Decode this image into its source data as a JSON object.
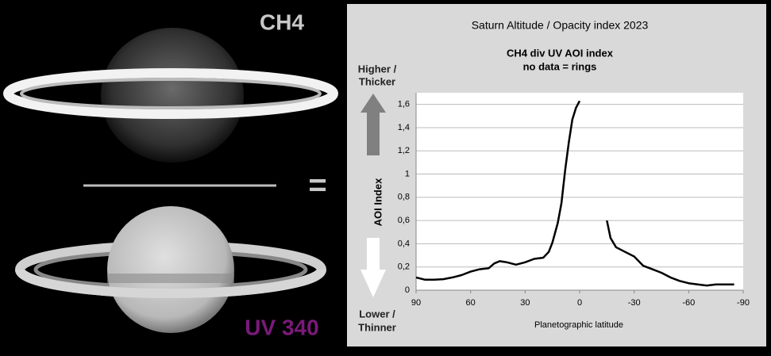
{
  "chart_data": {
    "type": "line",
    "title": "Saturn Altitude / Opacity index 2023",
    "subtitle": "CH4 div UV AOI index",
    "annotation": "no data = rings",
    "xlabel": "Planetographic latitude",
    "ylabel": "AOI Index",
    "x": [
      90,
      85,
      80,
      75,
      70,
      65,
      60,
      55,
      50,
      47,
      44,
      40,
      35,
      30,
      25,
      20,
      17,
      15,
      12,
      10,
      8,
      6,
      4,
      2,
      0,
      -5,
      -15,
      -17,
      -20,
      -25,
      -30,
      -35,
      -40,
      -45,
      -50,
      -55,
      -60,
      -65,
      -70,
      -75,
      -80,
      -85
    ],
    "series": [
      {
        "name": "AOI",
        "color": "#000000",
        "values": [
          0.11,
          0.09,
          0.09,
          0.095,
          0.11,
          0.13,
          0.16,
          0.18,
          0.19,
          0.23,
          0.25,
          0.24,
          0.22,
          0.24,
          0.27,
          0.28,
          0.33,
          0.41,
          0.58,
          0.75,
          1.03,
          1.27,
          1.47,
          1.57,
          1.63,
          null,
          0.6,
          0.45,
          0.37,
          0.33,
          0.29,
          0.21,
          0.18,
          0.15,
          0.11,
          0.08,
          0.06,
          0.05,
          0.04,
          0.05,
          0.05,
          0.05
        ]
      }
    ],
    "xlim": [
      90,
      -90
    ],
    "xticks": [
      90,
      60,
      30,
      0,
      -30,
      -60,
      -90
    ],
    "ylim": [
      0,
      1.7
    ],
    "yticks": [
      0,
      {
        "value": 0.2,
        "label": "0,2"
      },
      {
        "value": 0.4,
        "label": "0,4"
      },
      {
        "value": 0.6,
        "label": "0,6"
      },
      {
        "value": 0.8,
        "label": "0,8"
      },
      1,
      {
        "value": 1.2,
        "label": "1,2"
      },
      {
        "value": 1.4,
        "label": "1,4"
      },
      {
        "value": 1.6,
        "label": "1,6"
      }
    ],
    "grid": true
  },
  "images": {
    "top_label": "CH4",
    "bottom_label": "UV 340",
    "operator": "="
  },
  "arrows": {
    "up": [
      "Higher /",
      "Thicker"
    ],
    "down": [
      "Lower /",
      "Thinner"
    ]
  }
}
